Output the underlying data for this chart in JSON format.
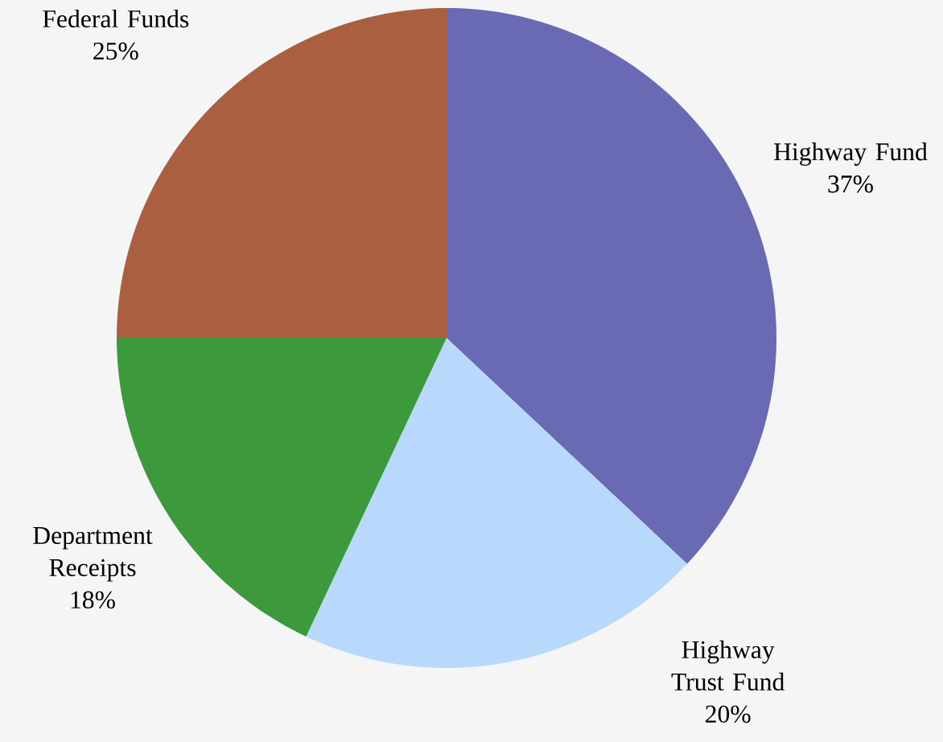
{
  "chart_data": {
    "type": "pie",
    "categories": [
      "Highway Fund",
      "Highway Trust Fund",
      "Department Receipts",
      "Federal Funds"
    ],
    "values": [
      37,
      20,
      18,
      25
    ],
    "colors": [
      "#6a6ab4",
      "#b8d8fc",
      "#3c9a3c",
      "#aa6040"
    ],
    "value_labels": [
      "37%",
      "20%",
      "18%",
      "25%"
    ]
  }
}
